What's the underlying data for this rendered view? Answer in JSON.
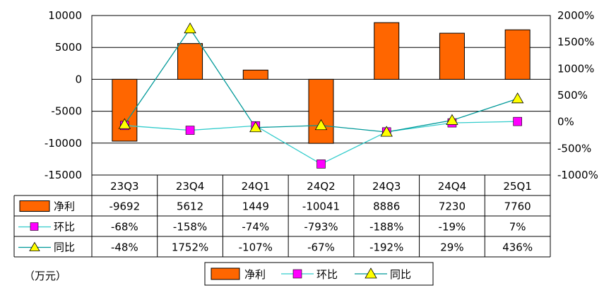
{
  "chart_data": {
    "type": "bar",
    "categories": [
      "23Q3",
      "23Q4",
      "24Q1",
      "24Q2",
      "24Q3",
      "24Q4",
      "25Q1"
    ],
    "series": [
      {
        "name": "净利",
        "kind": "bar",
        "axis": "left",
        "color": "#FF6600",
        "values": [
          -9692,
          5612,
          1449,
          -10041,
          8886,
          7230,
          7760
        ],
        "table_labels": [
          "-9692",
          "5612",
          "1449",
          "-10041",
          "8886",
          "7230",
          "7760"
        ]
      },
      {
        "name": "环比",
        "kind": "line",
        "axis": "right",
        "color": "#FF00FF",
        "line_color": "#33CCCC",
        "values": [
          -68,
          -158,
          -74,
          -793,
          -188,
          -19,
          7
        ],
        "table_labels": [
          "-68%",
          "-158%",
          "-74%",
          "-793%",
          "-188%",
          "-19%",
          "7%"
        ]
      },
      {
        "name": "同比",
        "kind": "line",
        "axis": "right",
        "color": "#FFFF00",
        "line_color": "#009999",
        "values": [
          -48,
          1752,
          -107,
          -67,
          -192,
          29,
          436
        ],
        "table_labels": [
          "-48%",
          "1752%",
          "-107%",
          "-67%",
          "-192%",
          "29%",
          "436%"
        ]
      }
    ],
    "y_left": {
      "ylim": [
        -15000,
        10000
      ],
      "ticks": [
        10000,
        5000,
        0,
        -5000,
        -10000,
        -15000
      ],
      "tick_labels": [
        "10000",
        "5000",
        "0",
        "-5000",
        "-10000",
        "-15000"
      ]
    },
    "y_right": {
      "ylim": [
        -1000,
        2000
      ],
      "ticks": [
        2000,
        1500,
        1000,
        500,
        0,
        -500,
        -1000
      ],
      "tick_labels": [
        "2000%",
        "1500%",
        "1000%",
        "500%",
        "0%",
        "-500%",
        "-1000%"
      ]
    },
    "grid": true,
    "legend_position": "bottom",
    "unit_note": "（万元）"
  }
}
